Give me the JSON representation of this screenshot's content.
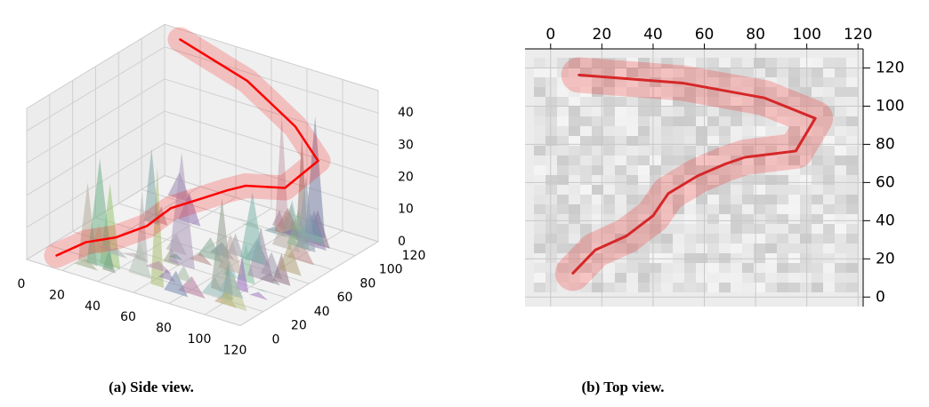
{
  "chart_data": [
    {
      "type": "line3d",
      "caption": "(a) Side view.",
      "color": "#ff0000",
      "x": [
        8.7,
        17.4,
        29.6,
        40,
        45.9,
        57.4,
        67.8,
        75.8,
        95.7,
        103.3,
        83.5,
        51.5,
        11.1
      ],
      "y": [
        12.5,
        24.6,
        32,
        42.6,
        54.2,
        63.5,
        69.5,
        73.2,
        76.5,
        93.6,
        104.3,
        112.1,
        116.3
      ],
      "z": [
        0,
        3,
        5,
        8,
        12,
        15,
        18,
        20,
        22,
        28,
        33,
        40,
        45
      ],
      "xlim": [
        0,
        120
      ],
      "ylim": [
        0,
        120
      ],
      "zlim": [
        0,
        47
      ],
      "xticks": [
        0,
        20,
        40,
        60,
        80,
        100,
        120
      ],
      "yticks": [
        0,
        20,
        40,
        60,
        80,
        100,
        120
      ],
      "zticks": [
        0,
        10,
        20,
        30,
        40
      ]
    },
    {
      "type": "line",
      "caption": "(b) Top view.",
      "color": "#d62728",
      "x": [
        8.7,
        17.4,
        29.6,
        40,
        45.9,
        57.4,
        67.8,
        75.8,
        95.7,
        103.3,
        83.5,
        51.5,
        11.1
      ],
      "y": [
        12.5,
        24.6,
        32,
        42.6,
        54.2,
        63.5,
        69.5,
        73.2,
        76.5,
        93.6,
        104.3,
        112.1,
        116.3
      ],
      "xlim": [
        -10,
        122
      ],
      "ylim": [
        -5,
        130
      ],
      "xticks": [
        0,
        20,
        40,
        60,
        80,
        100,
        120
      ],
      "yticks": [
        0,
        20,
        40,
        60,
        80,
        100,
        120
      ]
    }
  ]
}
